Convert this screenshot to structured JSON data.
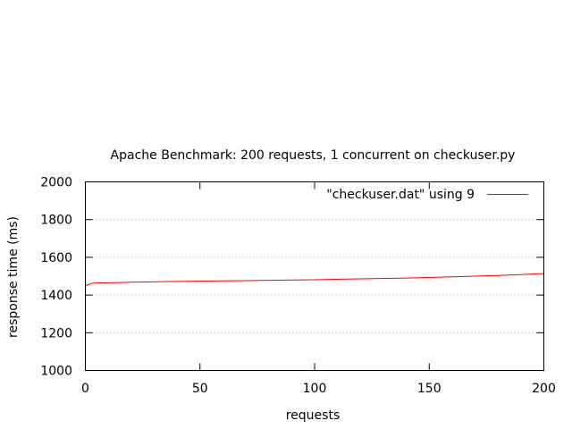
{
  "chart_data": {
    "type": "line",
    "title": "Apache Benchmark: 200 requests, 1 concurrent on checkuser.py",
    "xlabel": "requests",
    "ylabel": "response time (ms)",
    "xlim": [
      0,
      200
    ],
    "ylim": [
      1000,
      2000
    ],
    "xticks": [
      "0",
      "50",
      "100",
      "150",
      "200"
    ],
    "yticks": [
      "1000",
      "1200",
      "1400",
      "1600",
      "1800",
      "2000"
    ],
    "grid": "horizontal dotted",
    "legend_position": "top-right",
    "series": [
      {
        "name": "\"checkuser.dat\" using 9",
        "color": "#ff0000",
        "x": [
          0,
          3,
          5,
          20,
          40,
          60,
          80,
          100,
          120,
          140,
          160,
          170,
          180,
          190,
          200
        ],
        "y": [
          1450,
          1462,
          1464,
          1468,
          1472,
          1475,
          1478,
          1481,
          1486,
          1490,
          1496,
          1500,
          1504,
          1508,
          1514
        ]
      }
    ]
  }
}
